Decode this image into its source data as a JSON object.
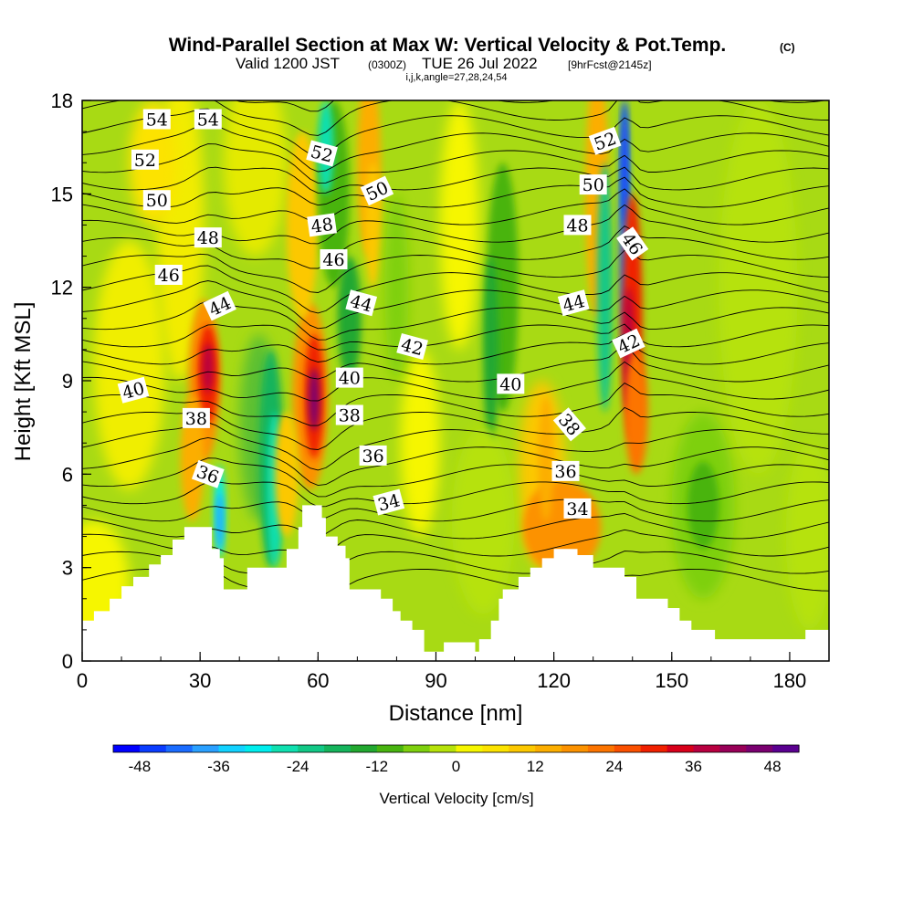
{
  "chart_data": {
    "type": "heatmap",
    "title": "Wind-Parallel Section at Max W: Vertical Velocity & Pot.Temp.",
    "title_mark": "(C)",
    "subtitle": {
      "valid": "Valid 1200 JST",
      "utc": "(0300Z)",
      "date": "TUE 26 Jul 2022",
      "fcst": "[9hrFcst@2145z]"
    },
    "indices": "i,j,k,angle=27,28,24,54",
    "xlabel": "Distance [nm]",
    "ylabel": "Height [Kft MSL]",
    "xlim": [
      0,
      190
    ],
    "ylim": [
      0,
      18
    ],
    "xticks": [
      "0",
      "30",
      "60",
      "90",
      "120",
      "150",
      "180"
    ],
    "yticks": [
      "0",
      "3",
      "6",
      "9",
      "12",
      "15",
      "18"
    ],
    "colorbar": {
      "label": "Vertical Velocity [cm/s]",
      "ticks": [
        "-48",
        "-36",
        "-24",
        "-12",
        "0",
        "12",
        "24",
        "36",
        "48"
      ],
      "min": -52,
      "max": 52,
      "step": 4,
      "colors": [
        "#0000ff",
        "#0a3cff",
        "#1a6cff",
        "#2aa0ff",
        "#12d2ff",
        "#00eeee",
        "#10e0b0",
        "#12c886",
        "#15b45c",
        "#22a830",
        "#48b410",
        "#7ed00e",
        "#b6e20a",
        "#f6f600",
        "#fce300",
        "#fcc800",
        "#fcae00",
        "#fc9200",
        "#fc7400",
        "#fa5000",
        "#f02000",
        "#d8001a",
        "#b80040",
        "#980058",
        "#7a0070",
        "#5a0090"
      ]
    },
    "contours": {
      "field": "potential temperature",
      "labels": [
        {
          "v": "54",
          "x": 19,
          "y": 17.4,
          "r": 0
        },
        {
          "v": "54",
          "x": 32,
          "y": 17.4,
          "r": 0
        },
        {
          "v": "52",
          "x": 16,
          "y": 16.1,
          "r": 0
        },
        {
          "v": "52",
          "x": 61,
          "y": 16.3,
          "r": 15
        },
        {
          "v": "52",
          "x": 133,
          "y": 16.7,
          "r": -20
        },
        {
          "v": "50",
          "x": 19,
          "y": 14.8,
          "r": 0
        },
        {
          "v": "50",
          "x": 75,
          "y": 15.1,
          "r": -25
        },
        {
          "v": "50",
          "x": 130,
          "y": 15.3,
          "r": 0
        },
        {
          "v": "48",
          "x": 32,
          "y": 13.6,
          "r": 0
        },
        {
          "v": "48",
          "x": 61,
          "y": 14.0,
          "r": -8
        },
        {
          "v": "48",
          "x": 126,
          "y": 14.0,
          "r": 0
        },
        {
          "v": "46",
          "x": 22,
          "y": 12.4,
          "r": 0
        },
        {
          "v": "46",
          "x": 64,
          "y": 12.9,
          "r": 0
        },
        {
          "v": "46",
          "x": 140,
          "y": 13.4,
          "r": 55
        },
        {
          "v": "44",
          "x": 35,
          "y": 11.4,
          "r": -25
        },
        {
          "v": "44",
          "x": 71,
          "y": 11.5,
          "r": 15
        },
        {
          "v": "44",
          "x": 125,
          "y": 11.5,
          "r": -15
        },
        {
          "v": "42",
          "x": 84,
          "y": 10.1,
          "r": 15
        },
        {
          "v": "42",
          "x": 139,
          "y": 10.2,
          "r": -25
        },
        {
          "v": "40",
          "x": 13,
          "y": 8.7,
          "r": -15
        },
        {
          "v": "40",
          "x": 68,
          "y": 9.1,
          "r": 0
        },
        {
          "v": "40",
          "x": 109,
          "y": 8.9,
          "r": 0
        },
        {
          "v": "38",
          "x": 29,
          "y": 7.8,
          "r": 0
        },
        {
          "v": "38",
          "x": 68,
          "y": 7.9,
          "r": 0
        },
        {
          "v": "38",
          "x": 124,
          "y": 7.6,
          "r": 50
        },
        {
          "v": "36",
          "x": 32,
          "y": 6.0,
          "r": 20
        },
        {
          "v": "36",
          "x": 74,
          "y": 6.6,
          "r": 0
        },
        {
          "v": "36",
          "x": 123,
          "y": 6.1,
          "r": 0
        },
        {
          "v": "34",
          "x": 78,
          "y": 5.1,
          "r": -15
        },
        {
          "v": "34",
          "x": 126,
          "y": 4.9,
          "r": 0
        }
      ]
    },
    "terrain_heights_kft": [
      [
        0,
        1.3
      ],
      [
        3,
        1.3
      ],
      [
        3,
        1.6
      ],
      [
        7,
        1.6
      ],
      [
        7,
        2.0
      ],
      [
        10,
        2.0
      ],
      [
        10,
        2.4
      ],
      [
        13,
        2.4
      ],
      [
        13,
        2.7
      ],
      [
        17,
        2.7
      ],
      [
        17,
        3.1
      ],
      [
        20,
        3.1
      ],
      [
        20,
        3.4
      ],
      [
        23,
        3.4
      ],
      [
        23,
        3.9
      ],
      [
        26,
        3.9
      ],
      [
        26,
        4.3
      ],
      [
        33,
        4.3
      ],
      [
        33,
        3.6
      ],
      [
        35,
        3.6
      ],
      [
        35,
        3.3
      ],
      [
        36,
        3.3
      ],
      [
        36,
        2.3
      ],
      [
        42,
        2.3
      ],
      [
        42,
        3.0
      ],
      [
        52,
        3.0
      ],
      [
        52,
        3.6
      ],
      [
        55,
        3.6
      ],
      [
        55,
        4.3
      ],
      [
        56,
        4.3
      ],
      [
        56,
        5.0
      ],
      [
        61,
        5.0
      ],
      [
        61,
        4.6
      ],
      [
        62,
        4.6
      ],
      [
        62,
        4.0
      ],
      [
        65,
        4.0
      ],
      [
        65,
        3.7
      ],
      [
        67,
        3.7
      ],
      [
        67,
        3.3
      ],
      [
        68,
        3.3
      ],
      [
        68,
        2.3
      ],
      [
        76,
        2.3
      ],
      [
        76,
        2.0
      ],
      [
        79,
        2.0
      ],
      [
        79,
        1.6
      ],
      [
        81,
        1.6
      ],
      [
        81,
        1.3
      ],
      [
        84,
        1.3
      ],
      [
        84,
        1.0
      ],
      [
        87,
        1.0
      ],
      [
        87,
        0.3
      ],
      [
        92,
        0.3
      ],
      [
        92,
        0.6
      ],
      [
        100,
        0.6
      ],
      [
        100,
        0.3
      ],
      [
        101,
        0.3
      ],
      [
        101,
        0.7
      ],
      [
        104,
        0.7
      ],
      [
        104,
        1.3
      ],
      [
        106,
        1.3
      ],
      [
        106,
        2.0
      ],
      [
        107,
        2.0
      ],
      [
        107,
        2.3
      ],
      [
        111,
        2.3
      ],
      [
        111,
        2.7
      ],
      [
        114,
        2.7
      ],
      [
        114,
        3.0
      ],
      [
        117,
        3.0
      ],
      [
        117,
        3.3
      ],
      [
        120,
        3.3
      ],
      [
        120,
        3.6
      ],
      [
        126,
        3.6
      ],
      [
        126,
        3.4
      ],
      [
        130,
        3.4
      ],
      [
        130,
        3.0
      ],
      [
        138,
        3.0
      ],
      [
        138,
        2.7
      ],
      [
        141,
        2.7
      ],
      [
        141,
        2.0
      ],
      [
        149,
        2.0
      ],
      [
        149,
        1.7
      ],
      [
        152,
        1.7
      ],
      [
        152,
        1.3
      ],
      [
        155,
        1.3
      ],
      [
        155,
        1.0
      ],
      [
        161,
        1.0
      ],
      [
        161,
        0.7
      ],
      [
        169,
        0.7
      ],
      [
        169,
        0.7
      ],
      [
        184,
        0.7
      ],
      [
        184,
        1.0
      ],
      [
        190,
        1.0
      ]
    ]
  }
}
